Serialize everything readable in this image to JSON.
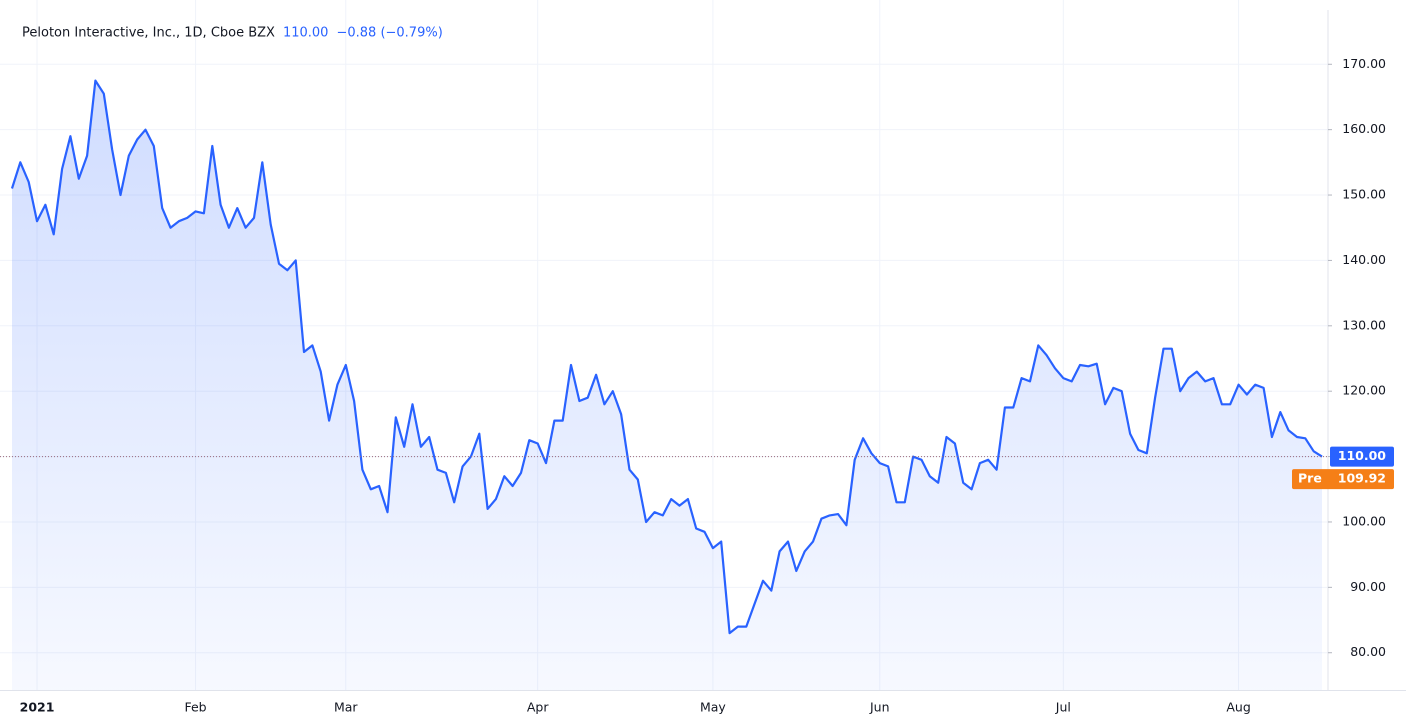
{
  "chart_data": {
    "type": "line",
    "title": "Peloton Interactive, Inc., 1D, Cboe BZX",
    "last_price": {
      "value": 110,
      "label": "110.00"
    },
    "change": "−0.88 (−0.79%)",
    "pre_market": {
      "label": "Pre",
      "value": 109.92
    },
    "color": "#2962ff",
    "categories": [
      null,
      null,
      null,
      "2021",
      null,
      null,
      null,
      null,
      null,
      null,
      null,
      null,
      null,
      null,
      null,
      null,
      null,
      null,
      null,
      null,
      null,
      null,
      "Feb",
      null,
      null,
      null,
      null,
      null,
      null,
      null,
      null,
      null,
      null,
      null,
      null,
      null,
      null,
      null,
      null,
      null,
      "Mar",
      null,
      null,
      null,
      null,
      null,
      null,
      null,
      null,
      null,
      null,
      null,
      null,
      null,
      null,
      null,
      null,
      null,
      null,
      null,
      null,
      null,
      null,
      "Apr",
      null,
      null,
      null,
      null,
      null,
      null,
      null,
      null,
      null,
      null,
      null,
      null,
      null,
      null,
      null,
      null,
      null,
      null,
      null,
      null,
      "May",
      null,
      null,
      null,
      null,
      null,
      null,
      null,
      null,
      null,
      null,
      null,
      null,
      null,
      null,
      null,
      null,
      null,
      null,
      null,
      "Jun",
      null,
      null,
      null,
      null,
      null,
      null,
      null,
      null,
      null,
      null,
      null,
      null,
      null,
      null,
      null,
      null,
      null,
      null,
      null,
      null,
      null,
      "Jul",
      null,
      null,
      null,
      null,
      null,
      null,
      null,
      null,
      null,
      null,
      null,
      null,
      null,
      null,
      null,
      null,
      null,
      null,
      null,
      null,
      "Aug",
      null,
      null,
      null,
      null,
      null,
      null,
      null,
      null,
      null,
      null
    ],
    "values": [
      151,
      155,
      152,
      146,
      148.5,
      144,
      154,
      159,
      152.5,
      156,
      167.5,
      165.5,
      157,
      150,
      156,
      158.5,
      160,
      157.5,
      148,
      145,
      146,
      146.5,
      147.5,
      147.2,
      157.5,
      148.5,
      145,
      148,
      145,
      146.5,
      155,
      145.5,
      139.5,
      138.5,
      140,
      126,
      127,
      123,
      115.5,
      121,
      124,
      118.5,
      108,
      105,
      105.5,
      101.5,
      116,
      111.5,
      118,
      111.5,
      113,
      108,
      107.5,
      103,
      108.5,
      110,
      113.5,
      102,
      103.5,
      107,
      105.5,
      107.5,
      112.5,
      112,
      109,
      115.5,
      115.5,
      124,
      118.5,
      119,
      122.5,
      118,
      120,
      116.5,
      108,
      106.5,
      100,
      101.5,
      101,
      103.5,
      102.5,
      103.5,
      99,
      98.5,
      96,
      97,
      83,
      84,
      84,
      87.5,
      91,
      89.5,
      95.5,
      97,
      92.5,
      95.5,
      97,
      100.5,
      101,
      101.2,
      99.5,
      109.5,
      112.8,
      110.5,
      109,
      108.5,
      103,
      103,
      110,
      109.5,
      107,
      106,
      113,
      112,
      106,
      105,
      109,
      109.5,
      108,
      117.5,
      117.5,
      122,
      121.5,
      127,
      125.5,
      123.5,
      122,
      121.5,
      124,
      123.8,
      124.2,
      118,
      120.5,
      120,
      113.5,
      111,
      110.5,
      119,
      126.5,
      126.5,
      120,
      122,
      123,
      121.5,
      122,
      118,
      118,
      121,
      119.5,
      121,
      120.5,
      113,
      116.8,
      114,
      113,
      112.8,
      110.8,
      110
    ],
    "ylim": [
      74.3,
      178.3
    ],
    "yticks": [
      {
        "value": 80,
        "label": "80.00"
      },
      {
        "value": 90,
        "label": "90.00"
      },
      {
        "value": 100,
        "label": "100.00"
      },
      {
        "value": 110,
        "label": "110.00"
      },
      {
        "value": 120,
        "label": "120.00"
      },
      {
        "value": 130,
        "label": "130.00"
      },
      {
        "value": 140,
        "label": "140.00"
      },
      {
        "value": 150,
        "label": "150.00"
      },
      {
        "value": 160,
        "label": "160.00"
      },
      {
        "value": 170,
        "label": "170.00"
      }
    ],
    "grid": true
  }
}
